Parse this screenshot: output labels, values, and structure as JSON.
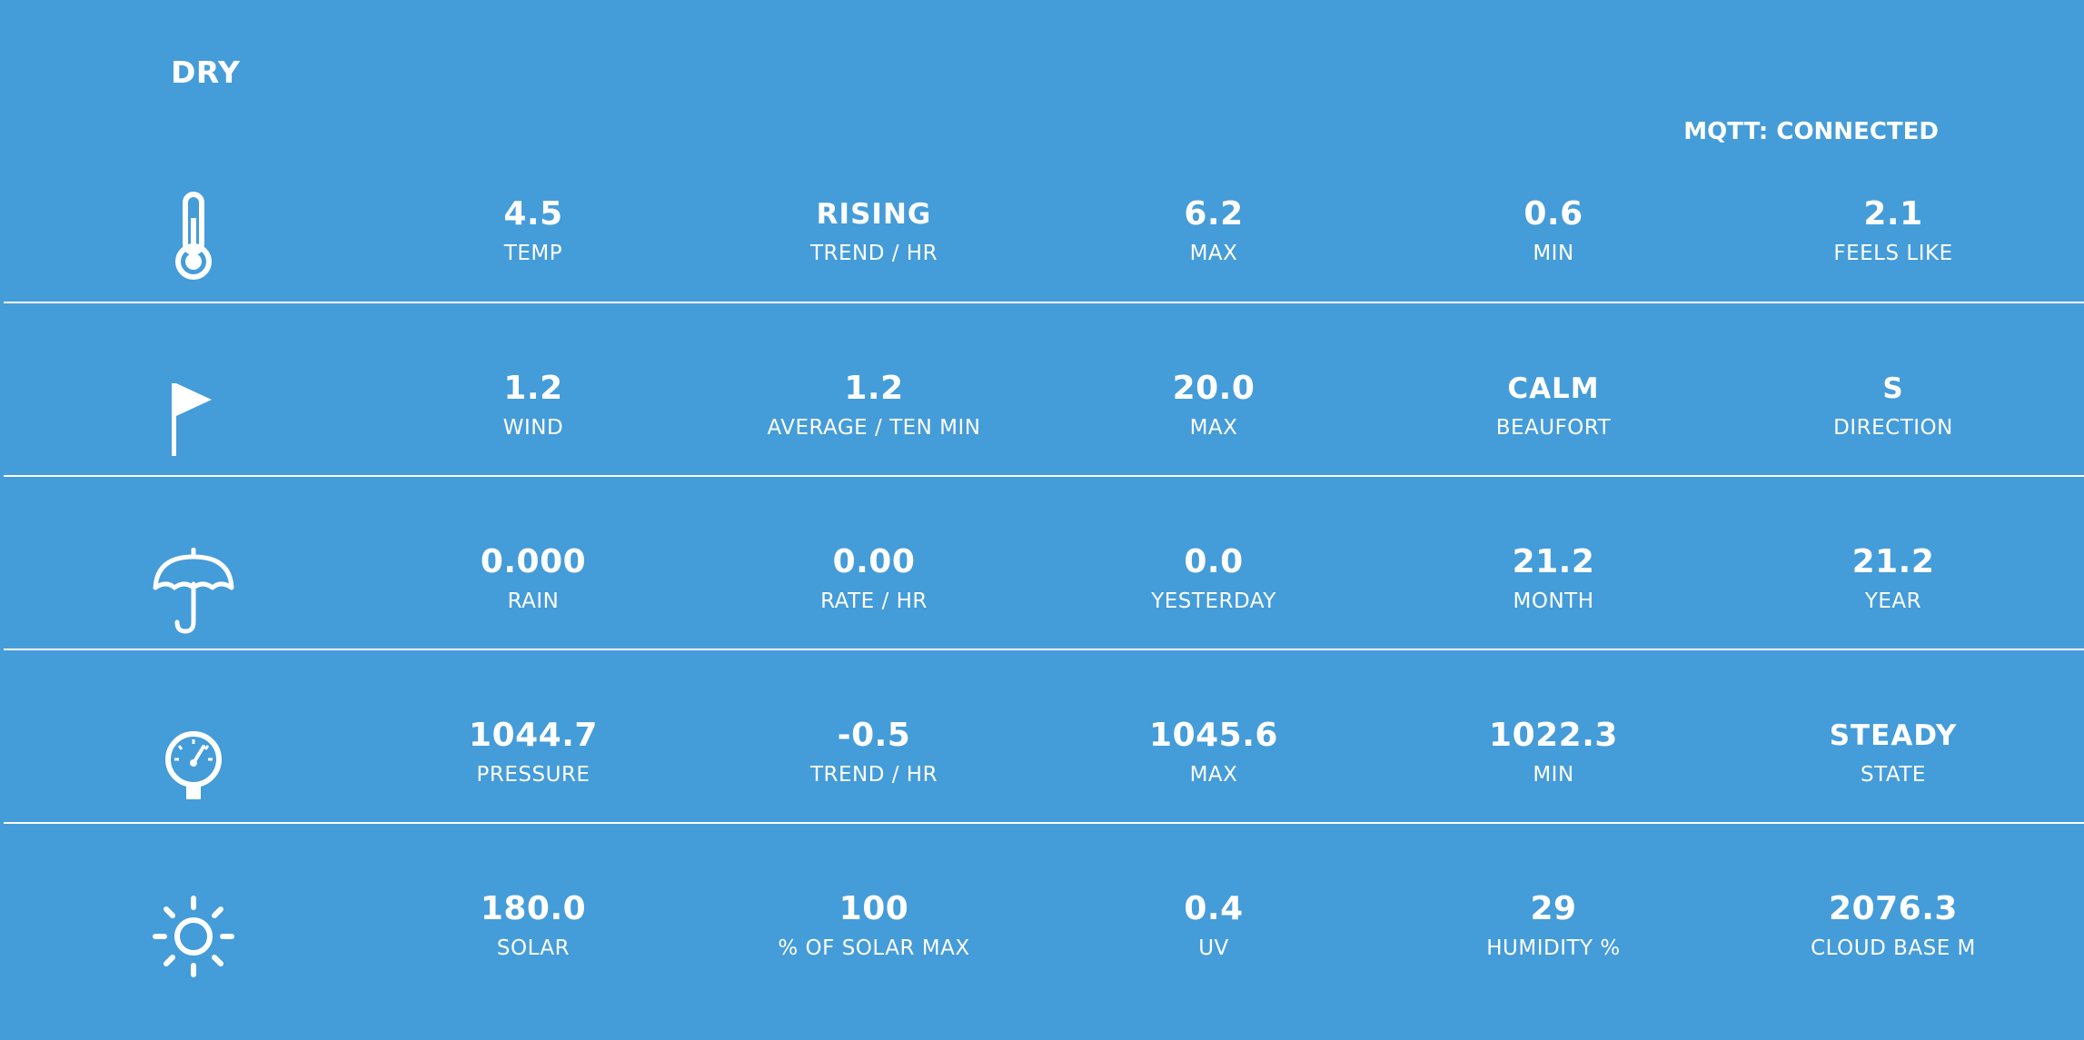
{
  "status": "DRY",
  "mqtt_status": "MQTT: CONNECTED",
  "rows": [
    {
      "icon": "thermometer-icon",
      "cells": [
        {
          "value": "4.5",
          "label": "TEMP"
        },
        {
          "value": "RISING",
          "label": "TREND / HR"
        },
        {
          "value": "6.2",
          "label": "MAX"
        },
        {
          "value": "0.6",
          "label": "MIN"
        },
        {
          "value": "2.1",
          "label": "FEELS LIKE"
        }
      ]
    },
    {
      "icon": "flag-icon",
      "cells": [
        {
          "value": "1.2",
          "label": "WIND"
        },
        {
          "value": "1.2",
          "label": "AVERAGE / TEN MIN"
        },
        {
          "value": "20.0",
          "label": "MAX"
        },
        {
          "value": "CALM",
          "label": "BEAUFORT"
        },
        {
          "value": "S",
          "label": "DIRECTION"
        }
      ]
    },
    {
      "icon": "umbrella-icon",
      "cells": [
        {
          "value": "0.000",
          "label": "RAIN"
        },
        {
          "value": "0.00",
          "label": "RATE / HR"
        },
        {
          "value": "0.0",
          "label": "YESTERDAY"
        },
        {
          "value": "21.2",
          "label": "MONTH"
        },
        {
          "value": "21.2",
          "label": "YEAR"
        }
      ]
    },
    {
      "icon": "pressure-gauge-icon",
      "cells": [
        {
          "value": "1044.7",
          "label": "PRESSURE"
        },
        {
          "value": "-0.5",
          "label": "TREND / HR"
        },
        {
          "value": "1045.6",
          "label": "MAX"
        },
        {
          "value": "1022.3",
          "label": "MIN"
        },
        {
          "value": "STEADY",
          "label": "STATE"
        }
      ]
    },
    {
      "icon": "sun-icon",
      "cells": [
        {
          "value": "180.0",
          "label": "SOLAR"
        },
        {
          "value": "100",
          "label": "% OF SOLAR MAX"
        },
        {
          "value": "0.4",
          "label": "UV"
        },
        {
          "value": "29",
          "label": "HUMIDITY %"
        },
        {
          "value": "2076.3",
          "label": "CLOUD BASE M"
        }
      ]
    }
  ]
}
